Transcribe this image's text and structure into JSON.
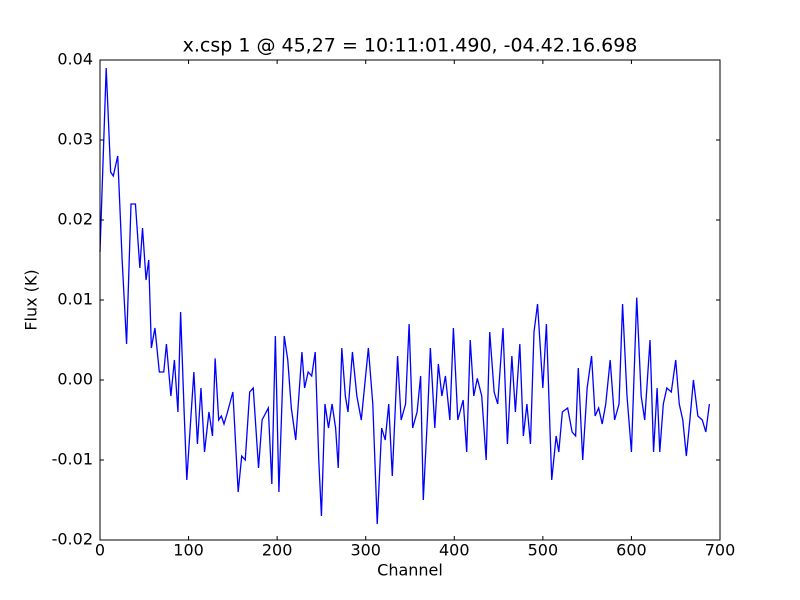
{
  "chart_data": {
    "type": "line",
    "title": "x.csp 1 @ 45,27 = 10:11:01.490, -04.42.16.698",
    "x_label": "Channel",
    "y_label": "Flux (K)",
    "x": [
      0,
      7,
      12,
      15,
      20,
      25,
      30,
      35,
      40,
      45,
      48,
      52,
      55,
      58,
      62,
      67,
      72,
      75,
      80,
      84,
      88,
      91,
      95,
      98,
      103,
      106,
      110,
      114,
      118,
      123,
      127,
      130,
      134,
      137,
      140,
      144,
      150,
      156,
      160,
      164,
      169,
      173,
      179,
      183,
      190,
      194,
      198,
      202,
      208,
      212,
      216,
      221,
      228,
      231,
      235,
      239,
      243,
      247,
      250,
      254,
      258,
      262,
      266,
      269,
      273,
      277,
      280,
      285,
      290,
      295,
      303,
      308,
      313,
      318,
      322,
      326,
      330,
      336,
      340,
      345,
      349,
      353,
      358,
      362,
      365,
      370,
      373,
      378,
      382,
      386,
      390,
      395,
      399,
      404,
      410,
      414,
      418,
      422,
      426,
      431,
      436,
      440,
      445,
      449,
      455,
      460,
      465,
      469,
      474,
      478,
      482,
      486,
      490,
      494,
      500,
      504,
      510,
      515,
      518,
      522,
      528,
      533,
      537,
      540,
      545,
      550,
      555,
      559,
      563,
      567,
      571,
      576,
      581,
      586,
      590,
      595,
      600,
      606,
      611,
      615,
      621,
      625,
      629,
      632,
      636,
      640,
      645,
      650,
      654,
      658,
      662,
      666,
      670,
      675,
      680,
      684,
      688
    ],
    "series": [
      {
        "name": "x.csp 1",
        "color": "#0000ff",
        "values": [
          0.016,
          0.039,
          0.026,
          0.0255,
          0.028,
          0.015,
          0.0045,
          0.022,
          0.022,
          0.014,
          0.019,
          0.0125,
          0.015,
          0.004,
          0.0065,
          0.001,
          0.001,
          0.0045,
          -0.002,
          0.0025,
          -0.004,
          0.0085,
          -0.004,
          -0.0125,
          -0.004,
          0.001,
          -0.008,
          -0.001,
          -0.009,
          -0.004,
          -0.007,
          0.0027,
          -0.005,
          -0.0045,
          -0.0055,
          -0.004,
          -0.0015,
          -0.014,
          -0.0095,
          -0.01,
          -0.0015,
          -0.001,
          -0.011,
          -0.005,
          -0.0035,
          -0.013,
          0.0055,
          -0.014,
          0.0055,
          0.0025,
          -0.0035,
          -0.0075,
          0.0035,
          -0.001,
          0.001,
          0.0005,
          0.0035,
          -0.01,
          -0.017,
          -0.003,
          -0.006,
          -0.003,
          -0.006,
          -0.011,
          0.004,
          -0.002,
          -0.004,
          0.0035,
          -0.002,
          -0.005,
          0.004,
          -0.003,
          -0.018,
          -0.006,
          -0.0075,
          -0.003,
          -0.012,
          0.003,
          -0.005,
          -0.003,
          0.007,
          -0.006,
          -0.004,
          0.0005,
          -0.015,
          -0.004,
          0.004,
          -0.006,
          0.002,
          -0.002,
          0.0005,
          -0.005,
          0.0065,
          -0.005,
          -0.0025,
          -0.009,
          0.005,
          -0.002,
          0.0002,
          -0.002,
          -0.01,
          0.006,
          -0.0015,
          -0.003,
          0.0065,
          -0.008,
          0.003,
          -0.004,
          0.0045,
          -0.007,
          -0.003,
          -0.008,
          0.006,
          0.0095,
          -0.001,
          0.007,
          -0.0125,
          -0.007,
          -0.009,
          -0.004,
          -0.0035,
          -0.0065,
          -0.007,
          0.0015,
          -0.01,
          -0.001,
          0.003,
          -0.0045,
          -0.0035,
          -0.0055,
          -0.003,
          0.0025,
          -0.005,
          -0.003,
          0.0095,
          -0.002,
          -0.009,
          0.0103,
          -0.002,
          -0.005,
          0.005,
          -0.009,
          -0.001,
          -0.009,
          -0.003,
          -0.001,
          -0.0015,
          0.0025,
          -0.003,
          -0.005,
          -0.0095,
          -0.005,
          0,
          -0.0045,
          -0.005,
          -0.0065,
          -0.003
        ]
      }
    ],
    "xlim": [
      0,
      700
    ],
    "xticks": [
      0,
      100,
      200,
      300,
      400,
      500,
      600,
      700
    ],
    "ylim": [
      -0.02,
      0.04
    ],
    "yticks": [
      -0.02,
      -0.01,
      {
        "value": 0,
        "label": "0.00"
      },
      0.01,
      0.02,
      0.03,
      0.04
    ],
    "grid": false
  }
}
